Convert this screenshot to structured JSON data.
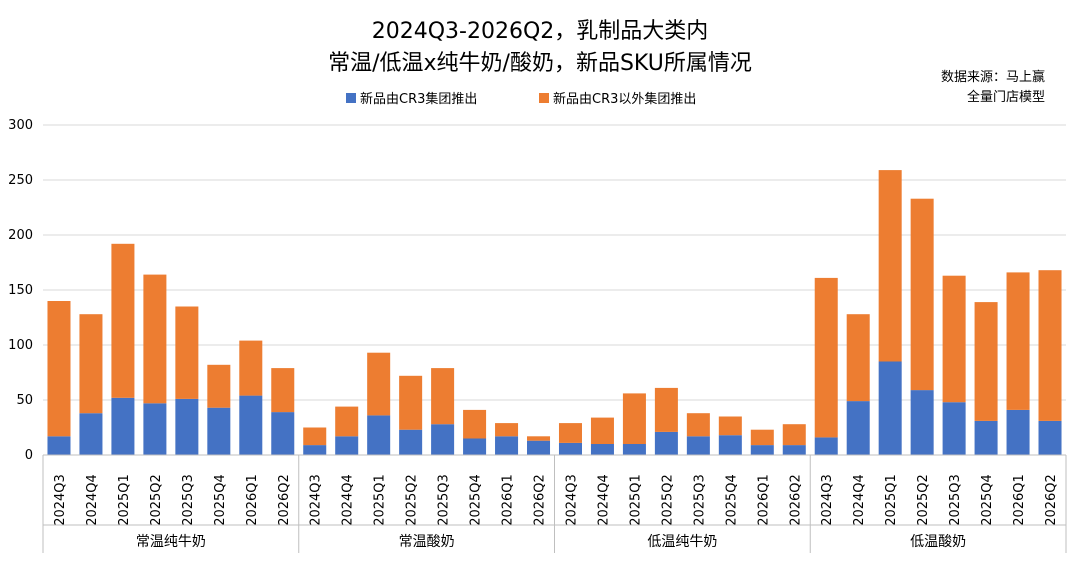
{
  "chart_data": {
    "type": "bar",
    "stacked": true,
    "title_line1": "2024Q3-2026Q2，乳制品大类内",
    "title_line2": "常温/低温x纯牛奶/酸奶，新品SKU所属情况",
    "source_line1": "数据来源：马上赢",
    "source_line2": "全量门店模型",
    "legend_position": "top",
    "ylim": [
      0,
      300
    ],
    "yticks": [
      0,
      50,
      100,
      150,
      200,
      250,
      300
    ],
    "grid": true,
    "colors": {
      "series_0": "#4472C4",
      "series_1": "#ED7D31"
    },
    "groups": [
      {
        "name": "常温纯牛奶",
        "categories": [
          "2024Q3",
          "2024Q4",
          "2025Q1",
          "2025Q2",
          "2025Q3",
          "2025Q4",
          "2026Q1",
          "2026Q2"
        ]
      },
      {
        "name": "常温酸奶",
        "categories": [
          "2024Q3",
          "2024Q4",
          "2025Q1",
          "2025Q2",
          "2025Q3",
          "2025Q4",
          "2026Q1",
          "2026Q2"
        ]
      },
      {
        "name": "低温纯牛奶",
        "categories": [
          "2024Q3",
          "2024Q4",
          "2025Q1",
          "2025Q2",
          "2025Q3",
          "2025Q4",
          "2026Q1",
          "2026Q2"
        ]
      },
      {
        "name": "低温酸奶",
        "categories": [
          "2024Q3",
          "2024Q4",
          "2025Q1",
          "2025Q2",
          "2025Q3",
          "2025Q4",
          "2026Q1",
          "2026Q2"
        ]
      }
    ],
    "series": [
      {
        "name": "新品由CR3集团推出",
        "values": [
          17,
          38,
          52,
          47,
          51,
          43,
          54,
          39,
          9,
          17,
          36,
          23,
          28,
          15,
          17,
          13,
          11,
          10,
          10,
          21,
          17,
          18,
          9,
          9,
          16,
          49,
          85,
          59,
          48,
          31,
          41,
          31
        ]
      },
      {
        "name": "新品由CR3以外集团推出",
        "values": [
          123,
          90,
          140,
          117,
          84,
          39,
          50,
          40,
          16,
          27,
          57,
          49,
          51,
          26,
          12,
          4,
          18,
          24,
          46,
          40,
          21,
          17,
          14,
          19,
          145,
          79,
          174,
          174,
          115,
          108,
          125,
          137
        ]
      }
    ]
  }
}
